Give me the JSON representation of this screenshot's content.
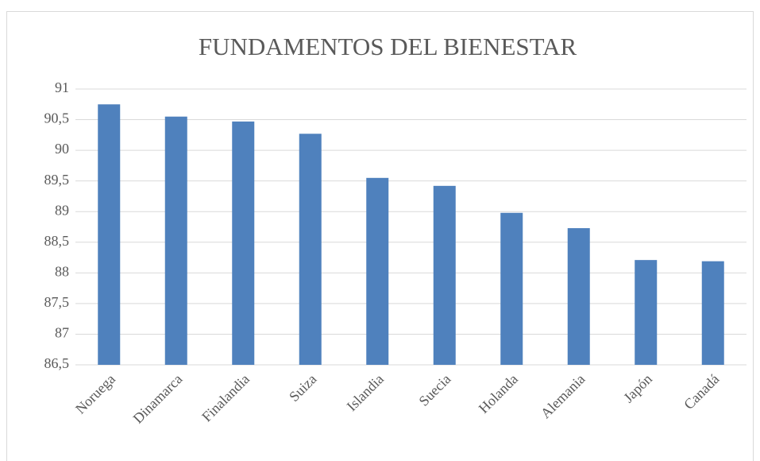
{
  "chart_data": {
    "type": "bar",
    "title": "FUNDAMENTOS DEL BIENESTAR",
    "categories": [
      "Noruega",
      "Dinamarca",
      "Finalandia",
      "Suiza",
      "Islandia",
      "Suecia",
      "Holanda",
      "Alemania",
      "Japón",
      "Canadá"
    ],
    "values": [
      90.75,
      90.55,
      90.47,
      90.27,
      89.55,
      89.42,
      88.98,
      88.73,
      88.21,
      88.19
    ],
    "color": "#4f81bd",
    "ylim": [
      86.5,
      91
    ],
    "yticks": [
      {
        "value": 86.5,
        "label": "86,5"
      },
      87,
      {
        "value": 87.5,
        "label": "87,5"
      },
      88,
      {
        "value": 88.5,
        "label": "88,5"
      },
      89,
      {
        "value": 89.5,
        "label": "89,5"
      },
      90,
      {
        "value": 90.5,
        "label": "90,5"
      },
      91
    ],
    "grid": true
  }
}
